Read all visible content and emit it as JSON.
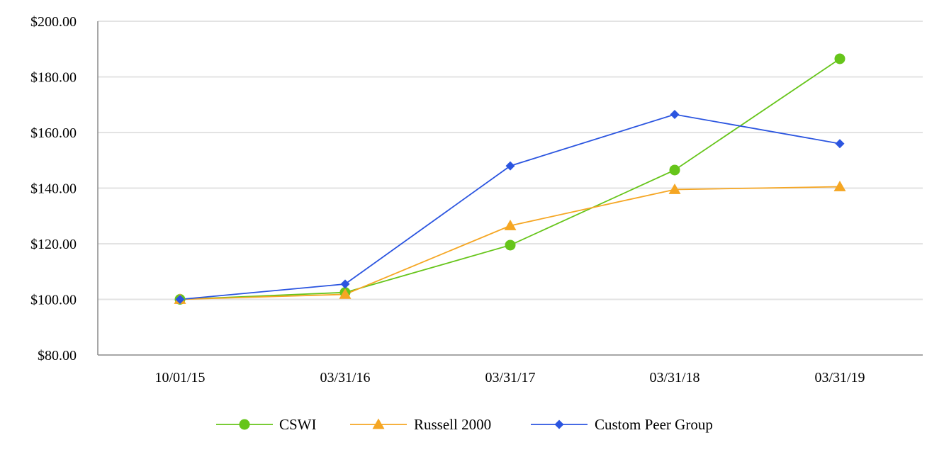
{
  "chart_data": {
    "type": "line",
    "title": "",
    "xlabel": "",
    "ylabel": "",
    "categories": [
      "10/01/15",
      "03/31/16",
      "03/31/17",
      "03/31/18",
      "03/31/19"
    ],
    "ylim": [
      80,
      200
    ],
    "yticks": [
      80,
      100,
      120,
      140,
      160,
      180,
      200
    ],
    "ytick_labels": [
      "$80.00",
      "$100.00",
      "$120.00",
      "$140.00",
      "$160.00",
      "$180.00",
      "$200.00"
    ],
    "grid": true,
    "legend_position": "bottom",
    "series": [
      {
        "name": "CSWI",
        "values": [
          100.0,
          102.5,
          119.5,
          146.5,
          186.5
        ],
        "color": "#66c51a",
        "marker": "circle"
      },
      {
        "name": "Russell 2000",
        "values": [
          100.0,
          101.8,
          126.5,
          139.5,
          140.5
        ],
        "color": "#f5a623",
        "marker": "triangle"
      },
      {
        "name": "Custom Peer Group",
        "values": [
          100.0,
          105.5,
          148.0,
          166.5,
          156.0
        ],
        "color": "#2b55e0",
        "marker": "diamond"
      }
    ]
  }
}
